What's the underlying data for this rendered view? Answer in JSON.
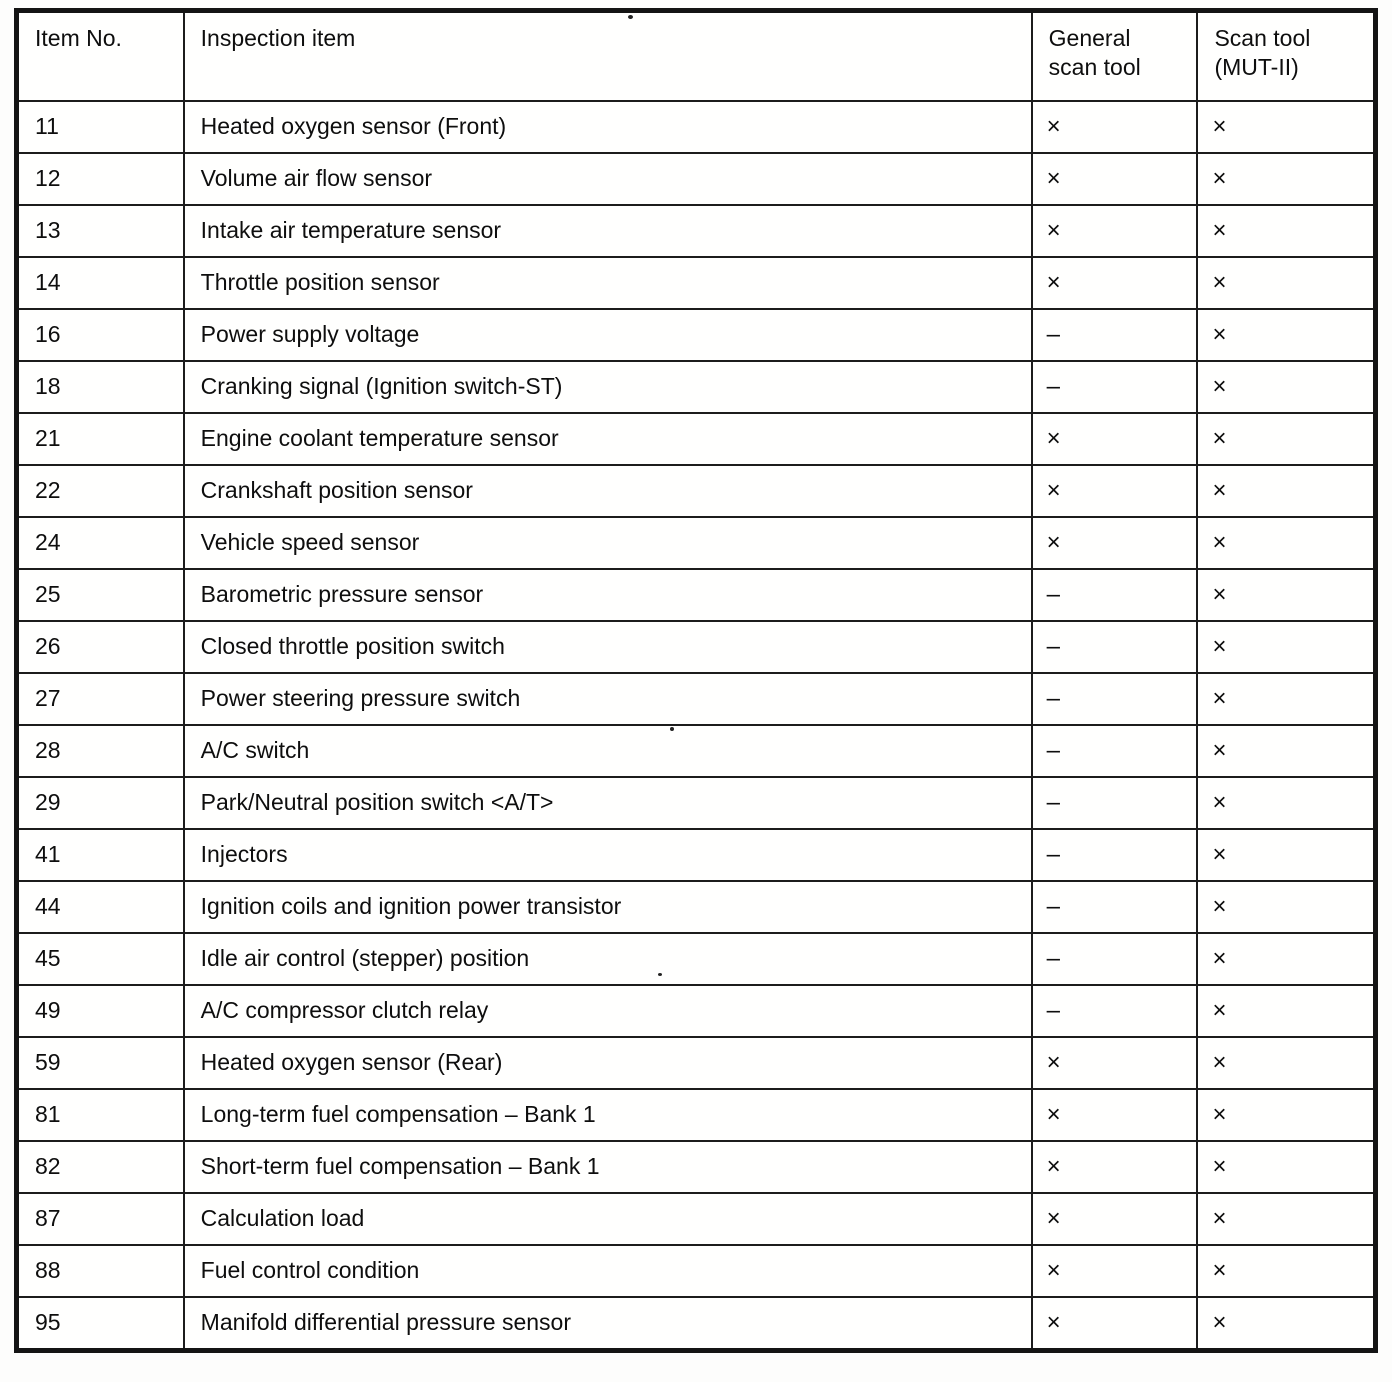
{
  "table": {
    "headers": [
      "Item No.",
      "Inspection item",
      "General\nscan tool",
      "Scan tool\n(MUT-II)"
    ],
    "marks": {
      "supported": "×",
      "not_supported": "–"
    },
    "rows": [
      {
        "item_no": "11",
        "inspection_item": "Heated oxygen sensor (Front)",
        "general": "×",
        "mut": "×"
      },
      {
        "item_no": "12",
        "inspection_item": "Volume air flow sensor",
        "general": "×",
        "mut": "×"
      },
      {
        "item_no": "13",
        "inspection_item": "Intake air temperature sensor",
        "general": "×",
        "mut": "×"
      },
      {
        "item_no": "14",
        "inspection_item": "Throttle position sensor",
        "general": "×",
        "mut": "×"
      },
      {
        "item_no": "16",
        "inspection_item": "Power supply voltage",
        "general": "–",
        "mut": "×"
      },
      {
        "item_no": "18",
        "inspection_item": "Cranking signal (Ignition switch-ST)",
        "general": "–",
        "mut": "×"
      },
      {
        "item_no": "21",
        "inspection_item": "Engine coolant temperature sensor",
        "general": "×",
        "mut": "×"
      },
      {
        "item_no": "22",
        "inspection_item": "Crankshaft position sensor",
        "general": "×",
        "mut": "×"
      },
      {
        "item_no": "24",
        "inspection_item": "Vehicle speed sensor",
        "general": "×",
        "mut": "×"
      },
      {
        "item_no": "25",
        "inspection_item": "Barometric pressure sensor",
        "general": "–",
        "mut": "×"
      },
      {
        "item_no": "26",
        "inspection_item": "Closed throttle position switch",
        "general": "–",
        "mut": "×"
      },
      {
        "item_no": "27",
        "inspection_item": "Power steering pressure switch",
        "general": "–",
        "mut": "×"
      },
      {
        "item_no": "28",
        "inspection_item": "A/C switch",
        "general": "–",
        "mut": "×"
      },
      {
        "item_no": "29",
        "inspection_item": "Park/Neutral position switch <A/T>",
        "general": "–",
        "mut": "×"
      },
      {
        "item_no": "41",
        "inspection_item": "Injectors",
        "general": "–",
        "mut": "×"
      },
      {
        "item_no": "44",
        "inspection_item": "Ignition coils and ignition power transistor",
        "general": "–",
        "mut": "×"
      },
      {
        "item_no": "45",
        "inspection_item": "Idle air control (stepper) position",
        "general": "–",
        "mut": "×"
      },
      {
        "item_no": "49",
        "inspection_item": "A/C compressor clutch relay",
        "general": "–",
        "mut": "×"
      },
      {
        "item_no": "59",
        "inspection_item": "Heated oxygen sensor (Rear)",
        "general": "×",
        "mut": "×"
      },
      {
        "item_no": "81",
        "inspection_item": "Long-term fuel compensation – Bank 1",
        "general": "×",
        "mut": "×"
      },
      {
        "item_no": "82",
        "inspection_item": "Short-term fuel compensation – Bank 1",
        "general": "×",
        "mut": "×"
      },
      {
        "item_no": "87",
        "inspection_item": "Calculation load",
        "general": "×",
        "mut": "×"
      },
      {
        "item_no": "88",
        "inspection_item": "Fuel control condition",
        "general": "×",
        "mut": "×"
      },
      {
        "item_no": "95",
        "inspection_item": "Manifold differential pressure sensor",
        "general": "×",
        "mut": "×"
      }
    ]
  }
}
